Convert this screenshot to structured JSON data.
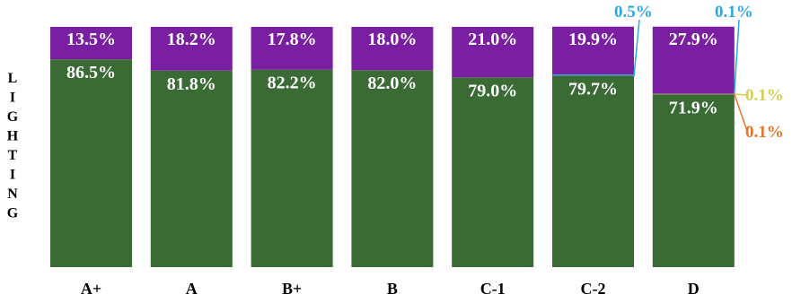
{
  "chart_data": {
    "type": "bar",
    "stacked": true,
    "percent": true,
    "ylabel": "LIGHTING",
    "categories": [
      "A+",
      "A",
      "B+",
      "B",
      "C-1",
      "C-2",
      "D"
    ],
    "series": [
      {
        "color": "#3a6b35",
        "values": [
          86.5,
          81.8,
          82.2,
          82.0,
          79.0,
          79.7,
          71.9
        ],
        "labels": [
          "86.5%",
          "81.8%",
          "82.2%",
          "82.0%",
          "79.0%",
          "79.7%",
          "71.9%"
        ]
      },
      {
        "color": "#e8742a",
        "values": [
          0,
          0,
          0,
          0,
          0,
          0,
          0.1
        ],
        "labels": [
          "",
          "",
          "",
          "",
          "",
          "",
          "0.1%"
        ]
      },
      {
        "color": "#d4cf52",
        "values": [
          0,
          0,
          0,
          0,
          0,
          0,
          0.1
        ],
        "labels": [
          "",
          "",
          "",
          "",
          "",
          "",
          "0.1%"
        ]
      },
      {
        "color": "#2fa7e0",
        "values": [
          0,
          0,
          0,
          0,
          0,
          0.5,
          0.1
        ],
        "labels": [
          "",
          "",
          "",
          "",
          "",
          "0.5%",
          "0.1%"
        ]
      },
      {
        "color": "#7a1fa2",
        "values": [
          13.5,
          18.2,
          17.8,
          18.0,
          21.0,
          19.9,
          27.9
        ],
        "labels": [
          "13.5%",
          "18.2%",
          "17.8%",
          "18.0%",
          "21.0%",
          "19.9%",
          "27.9%"
        ]
      }
    ],
    "ylim": [
      0,
      100
    ],
    "grid": false,
    "legend": "none"
  }
}
